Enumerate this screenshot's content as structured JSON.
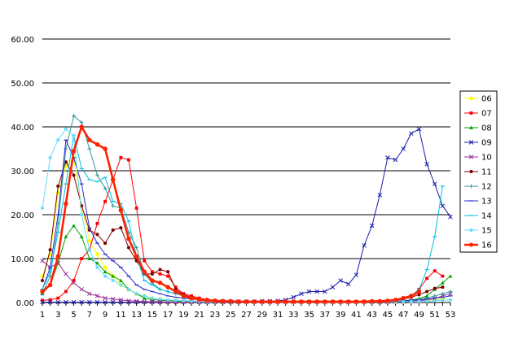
{
  "chart_data": {
    "type": "line",
    "title": "",
    "xlabel": "",
    "ylabel": "",
    "ylim": [
      0,
      60
    ],
    "yticks": [
      "0.00",
      "10.00",
      "20.00",
      "30.00",
      "40.00",
      "50.00",
      "60.00"
    ],
    "xticks": [
      "1",
      "3",
      "5",
      "7",
      "9",
      "11",
      "13",
      "15",
      "17",
      "19",
      "21",
      "23",
      "25",
      "27",
      "29",
      "31",
      "33",
      "35",
      "37",
      "39",
      "41",
      "43",
      "45",
      "47",
      "49",
      "51",
      "53"
    ],
    "x": [
      1,
      2,
      3,
      4,
      5,
      6,
      7,
      8,
      9,
      10,
      11,
      12,
      13,
      14,
      15,
      16,
      17,
      18,
      19,
      20,
      21,
      22,
      23,
      24,
      25,
      26,
      27,
      28,
      29,
      30,
      31,
      32,
      33,
      34,
      35,
      36,
      37,
      38,
      39,
      40,
      41,
      42,
      43,
      44,
      45,
      46,
      47,
      48,
      49,
      50,
      51,
      52,
      53
    ],
    "grid": "horizontal",
    "legend_position": "right",
    "series": [
      {
        "name": "06",
        "color": "#ffff00",
        "marker": "diamond",
        "values": [
          6.0,
          11.0,
          25.0,
          31.0,
          33.0,
          22.0,
          14.0,
          11.0,
          8.0,
          6.0,
          4.0,
          3.0,
          2.0,
          1.5,
          1.0,
          0.8,
          0.6,
          0.5,
          0.4,
          0.3,
          0.3,
          0.2,
          0.2,
          0.2,
          0.2,
          0.2,
          0.1,
          0.1,
          0.1,
          0.1,
          0.1,
          0.1,
          0.1,
          0.1,
          0.1,
          0.1,
          0.1,
          0.1,
          0.1,
          0.1,
          0.1,
          0.1,
          0.1,
          0.2,
          0.2,
          0.2,
          0.2,
          0.3,
          0.4,
          0.5,
          0.6,
          0.8,
          null
        ]
      },
      {
        "name": "07",
        "color": "#ff0000",
        "marker": "square",
        "values": [
          0.5,
          0.6,
          1.0,
          2.5,
          5.0,
          10.0,
          12.0,
          18.0,
          23.0,
          28.0,
          33.0,
          32.5,
          21.5,
          9.5,
          7.0,
          6.5,
          6.0,
          3.5,
          2.0,
          1.5,
          1.0,
          0.7,
          0.5,
          0.4,
          0.3,
          0.2,
          0.2,
          0.2,
          0.2,
          0.2,
          0.2,
          0.2,
          0.2,
          0.2,
          0.2,
          0.2,
          0.2,
          0.2,
          0.2,
          0.2,
          0.2,
          0.3,
          0.3,
          0.3,
          0.4,
          0.5,
          0.8,
          1.5,
          3.0,
          5.5,
          7.2,
          6.0,
          null
        ]
      },
      {
        "name": "08",
        "color": "#00a000",
        "marker": "triangle",
        "values": [
          2.0,
          4.0,
          9.0,
          15.0,
          17.5,
          15.0,
          10.0,
          9.0,
          7.0,
          6.0,
          5.0,
          3.0,
          2.0,
          1.0,
          0.7,
          0.5,
          0.4,
          0.3,
          0.2,
          0.2,
          0.2,
          0.1,
          0.1,
          0.1,
          0.1,
          0.1,
          0.1,
          0.1,
          0.1,
          0.1,
          0.1,
          0.1,
          0.1,
          0.1,
          0.1,
          0.1,
          0.1,
          0.1,
          0.1,
          0.1,
          0.1,
          0.1,
          0.1,
          0.1,
          0.2,
          0.3,
          0.4,
          0.6,
          0.9,
          1.5,
          3.0,
          4.5,
          6.0
        ]
      },
      {
        "name": "09",
        "color": "#1c1caa",
        "marker": "x",
        "values": [
          0.1,
          0.1,
          0.1,
          0.1,
          0.1,
          0.1,
          0.1,
          0.1,
          0.1,
          0.1,
          0.1,
          0.1,
          0.1,
          0.1,
          0.1,
          0.1,
          0.1,
          0.1,
          0.1,
          0.1,
          0.1,
          0.1,
          0.2,
          0.2,
          0.2,
          0.2,
          0.2,
          0.2,
          0.3,
          0.3,
          0.4,
          0.6,
          1.2,
          2.0,
          2.5,
          2.5,
          2.5,
          3.5,
          5.0,
          4.2,
          6.3,
          13.0,
          17.5,
          24.5,
          33.0,
          32.5,
          35.0,
          38.5,
          39.5,
          31.5,
          27.0,
          22.0,
          19.5
        ]
      },
      {
        "name": "10",
        "color": "#993399",
        "marker": "x",
        "values": [
          9.5,
          8.0,
          9.0,
          6.5,
          4.5,
          3.0,
          2.0,
          1.5,
          1.0,
          0.8,
          0.6,
          0.4,
          0.3,
          0.2,
          0.2,
          0.2,
          0.1,
          0.1,
          0.1,
          0.1,
          0.1,
          0.1,
          0.1,
          0.1,
          0.1,
          0.1,
          0.1,
          0.1,
          0.1,
          0.1,
          0.1,
          0.1,
          0.1,
          0.1,
          0.1,
          0.1,
          0.1,
          0.1,
          0.1,
          0.1,
          0.1,
          0.1,
          0.1,
          0.1,
          0.1,
          0.2,
          0.2,
          0.3,
          0.4,
          0.6,
          0.9,
          1.5,
          2.0
        ]
      },
      {
        "name": "11",
        "color": "#800000",
        "marker": "circle",
        "values": [
          5.0,
          12.0,
          26.5,
          32.0,
          29.0,
          22.0,
          16.5,
          15.5,
          13.5,
          16.5,
          17.0,
          12.5,
          9.5,
          6.5,
          6.5,
          7.5,
          7.0,
          3.0,
          1.8,
          1.2,
          0.8,
          0.6,
          0.5,
          0.4,
          0.3,
          0.3,
          0.2,
          0.2,
          0.2,
          0.2,
          0.2,
          0.2,
          0.2,
          0.2,
          0.2,
          0.2,
          0.2,
          0.2,
          0.2,
          0.2,
          0.2,
          0.2,
          0.3,
          0.3,
          0.4,
          0.5,
          0.8,
          1.2,
          1.8,
          2.5,
          3.2,
          3.5,
          null
        ]
      },
      {
        "name": "12",
        "color": "#339999",
        "marker": "plus",
        "values": [
          2.0,
          6.0,
          18.0,
          35.0,
          42.5,
          41.0,
          35.0,
          29.0,
          26.0,
          22.0,
          21.5,
          16.0,
          12.5,
          6.5,
          4.5,
          3.0,
          2.5,
          2.0,
          1.5,
          1.0,
          0.8,
          0.5,
          0.4,
          0.3,
          0.3,
          0.2,
          0.2,
          0.2,
          0.2,
          0.2,
          0.2,
          0.2,
          0.2,
          0.2,
          0.2,
          0.2,
          0.2,
          0.2,
          0.2,
          0.2,
          0.2,
          0.2,
          0.2,
          0.3,
          0.3,
          0.3,
          0.4,
          0.5,
          0.7,
          1.0,
          1.5,
          2.0,
          2.5
        ]
      },
      {
        "name": "13",
        "color": "#2a2acc",
        "marker": "dash",
        "values": [
          3.0,
          8.0,
          20.0,
          37.0,
          33.0,
          27.0,
          17.0,
          13.5,
          11.0,
          9.5,
          8.0,
          6.0,
          4.0,
          3.0,
          2.5,
          2.0,
          1.5,
          1.2,
          1.0,
          0.8,
          0.6,
          0.5,
          0.4,
          0.3,
          0.3,
          0.2,
          0.2,
          0.2,
          0.2,
          0.2,
          0.2,
          0.2,
          0.2,
          0.2,
          0.2,
          0.2,
          0.2,
          0.2,
          0.2,
          0.2,
          0.2,
          0.2,
          0.2,
          0.2,
          0.3,
          0.3,
          0.4,
          0.5,
          0.6,
          0.8,
          1.0,
          1.2,
          1.5
        ]
      },
      {
        "name": "14",
        "color": "#00bfe0",
        "marker": "dash",
        "values": [
          3.0,
          7.0,
          16.0,
          27.0,
          38.0,
          30.5,
          28.0,
          27.5,
          28.5,
          23.0,
          22.5,
          18.5,
          10.5,
          5.0,
          4.0,
          3.0,
          2.5,
          2.0,
          1.5,
          1.0,
          0.8,
          0.6,
          0.4,
          0.3,
          0.3,
          0.2,
          0.2,
          0.2,
          0.2,
          0.2,
          0.2,
          0.2,
          0.2,
          0.2,
          0.2,
          0.2,
          0.2,
          0.2,
          0.2,
          0.2,
          0.2,
          0.2,
          0.2,
          0.3,
          0.4,
          0.5,
          0.8,
          1.5,
          3.0,
          7.5,
          15.0,
          26.5,
          null
        ]
      },
      {
        "name": "15",
        "color": "#66ddff",
        "marker": "circle",
        "values": [
          21.5,
          33.0,
          37.0,
          39.5,
          38.0,
          20.0,
          12.0,
          8.0,
          6.0,
          5.0,
          4.0,
          3.0,
          2.0,
          1.5,
          1.0,
          0.8,
          0.6,
          0.5,
          0.4,
          0.3,
          0.3,
          0.2,
          0.2,
          0.2,
          0.2,
          0.2,
          0.2,
          0.2,
          0.2,
          0.2,
          0.2,
          0.2,
          0.2,
          0.2,
          0.2,
          0.2,
          0.2,
          0.2,
          0.2,
          0.2,
          0.2,
          0.2,
          0.2,
          0.2,
          0.2,
          0.2,
          0.2,
          0.2,
          0.3,
          0.3,
          0.4,
          0.5,
          0.6
        ]
      },
      {
        "name": "16",
        "color": "#ff2200",
        "marker": "circle",
        "values": [
          2.5,
          4.0,
          10.5,
          22.5,
          34.5,
          40.0,
          37.0,
          36.0,
          35.0,
          28.0,
          21.0,
          14.5,
          10.5,
          7.0,
          5.0,
          4.5,
          3.5,
          2.5,
          1.5,
          1.0,
          0.7,
          0.5,
          0.4,
          0.3,
          0.3,
          0.2,
          0.2,
          0.2,
          0.2,
          0.2,
          0.2,
          0.2,
          0.2,
          0.2,
          0.2,
          0.2,
          0.2,
          0.2,
          0.2,
          0.2,
          0.2,
          0.2,
          0.3,
          0.3,
          0.4,
          0.6,
          1.0,
          1.5,
          2.5,
          null,
          null,
          null,
          null
        ]
      }
    ]
  }
}
